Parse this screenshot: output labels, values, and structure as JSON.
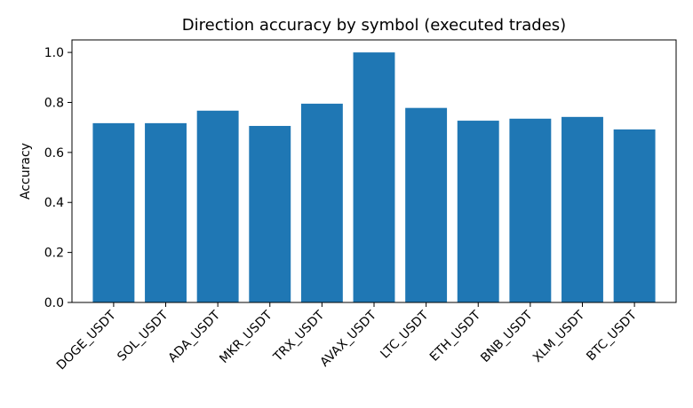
{
  "chart_data": {
    "type": "bar",
    "title": "Direction accuracy by symbol (executed trades)",
    "xlabel": "",
    "ylabel": "Accuracy",
    "categories": [
      "DOGE_USDT",
      "SOL_USDT",
      "ADA_USDT",
      "MKR_USDT",
      "TRX_USDT",
      "AVAX_USDT",
      "LTC_USDT",
      "ETH_USDT",
      "BNB_USDT",
      "XLM_USDT",
      "BTC_USDT"
    ],
    "values": [
      0.717,
      0.717,
      0.767,
      0.706,
      0.795,
      1.0,
      0.778,
      0.727,
      0.735,
      0.742,
      0.692
    ],
    "ylim": [
      0,
      1.05
    ],
    "yticks": [
      0.0,
      0.2,
      0.4,
      0.6,
      0.8,
      1.0
    ],
    "ytick_labels": [
      "0.0",
      "0.2",
      "0.4",
      "0.6",
      "0.8",
      "1.0"
    ],
    "bar_color": "#1f77b4",
    "grid": false,
    "legend": "none"
  }
}
